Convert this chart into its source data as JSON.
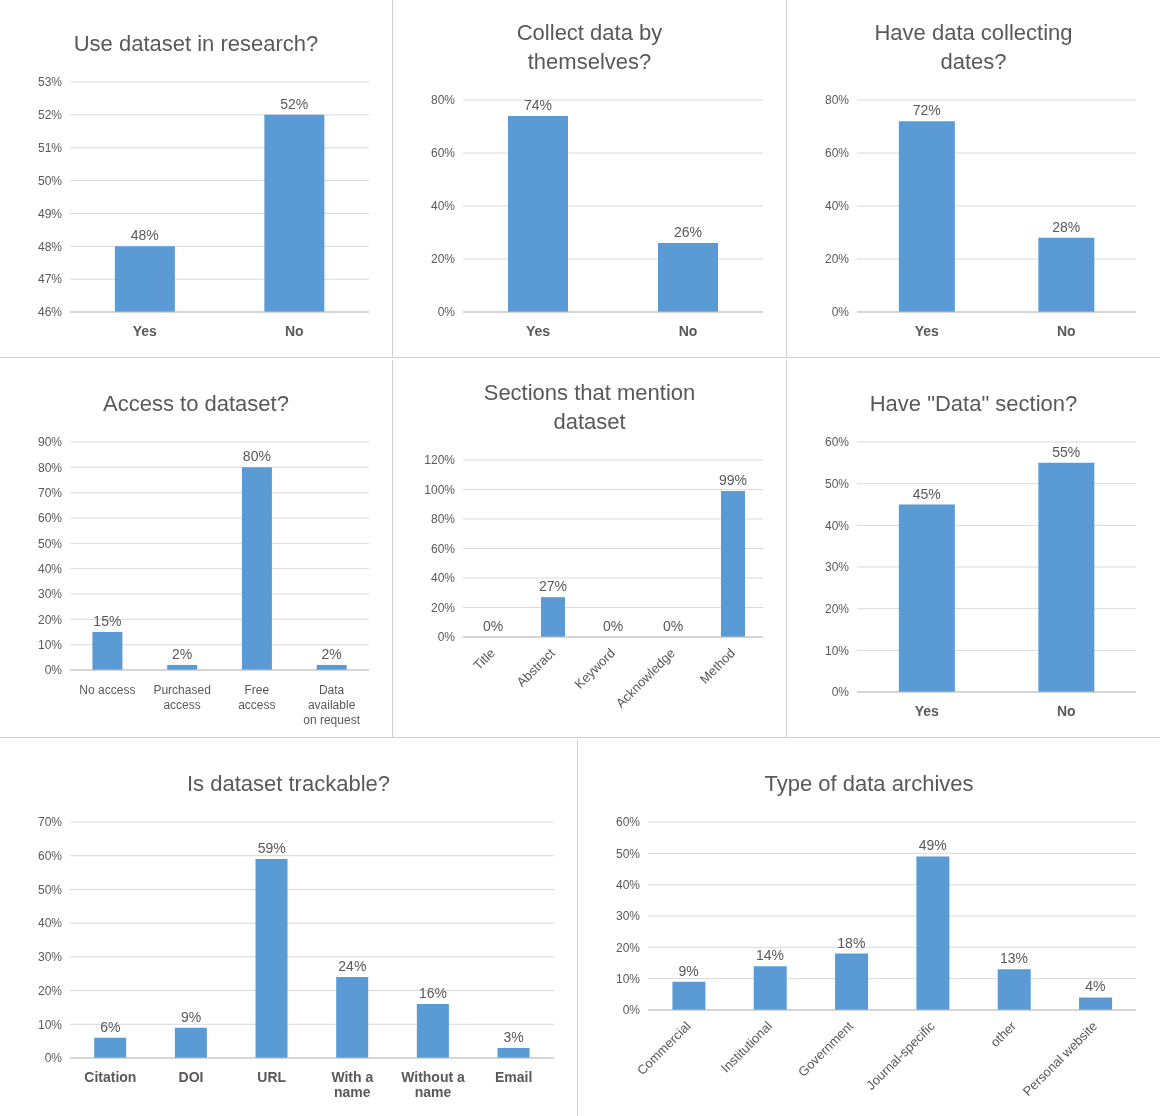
{
  "chart_data": [
    {
      "type": "bar",
      "title": "Use dataset in research?",
      "categories": [
        "Yes",
        "No"
      ],
      "values": [
        48,
        52
      ],
      "value_labels": [
        "48%",
        "52%"
      ],
      "color": "#5b9bd5",
      "ylim": [
        46,
        53
      ],
      "yticks": [
        {
          "value": 46,
          "label": "46%"
        },
        {
          "value": 47,
          "label": "47%"
        },
        {
          "value": 48,
          "label": "48%"
        },
        {
          "value": 49,
          "label": "49%"
        },
        {
          "value": 50,
          "label": "50%"
        },
        {
          "value": 51,
          "label": "51%"
        },
        {
          "value": 52,
          "label": "52%"
        },
        {
          "value": 53,
          "label": "53%"
        }
      ],
      "grid": "y"
    },
    {
      "type": "bar",
      "title": "Collect data by themselves?",
      "categories": [
        "Yes",
        "No"
      ],
      "values": [
        74,
        26
      ],
      "value_labels": [
        "74%",
        "26%"
      ],
      "color": "#5b9bd5",
      "ylim": [
        0,
        80
      ],
      "yticks": [
        {
          "value": 0,
          "label": "0%"
        },
        {
          "value": 20,
          "label": "20%"
        },
        {
          "value": 40,
          "label": "40%"
        },
        {
          "value": 60,
          "label": "60%"
        },
        {
          "value": 80,
          "label": "80%"
        }
      ],
      "grid": "y"
    },
    {
      "type": "bar",
      "title": "Have data collecting dates?",
      "categories": [
        "Yes",
        "No"
      ],
      "values": [
        72,
        28
      ],
      "value_labels": [
        "72%",
        "28%"
      ],
      "color": "#5b9bd5",
      "ylim": [
        0,
        80
      ],
      "yticks": [
        {
          "value": 0,
          "label": "0%"
        },
        {
          "value": 20,
          "label": "20%"
        },
        {
          "value": 40,
          "label": "40%"
        },
        {
          "value": 60,
          "label": "60%"
        },
        {
          "value": 80,
          "label": "80%"
        }
      ],
      "grid": "y"
    },
    {
      "type": "bar",
      "title": "Access to dataset?",
      "categories": [
        "No access",
        "Purchased access",
        "Free access",
        "Data available on request"
      ],
      "values": [
        15,
        2,
        80,
        2
      ],
      "value_labels": [
        "15%",
        "2%",
        "80%",
        "2%"
      ],
      "color": "#5b9bd5",
      "ylim": [
        0,
        90
      ],
      "yticks": [
        {
          "value": 0,
          "label": "0%"
        },
        {
          "value": 10,
          "label": "10%"
        },
        {
          "value": 20,
          "label": "20%"
        },
        {
          "value": 30,
          "label": "30%"
        },
        {
          "value": 40,
          "label": "40%"
        },
        {
          "value": 50,
          "label": "50%"
        },
        {
          "value": 60,
          "label": "60%"
        },
        {
          "value": 70,
          "label": "70%"
        },
        {
          "value": 80,
          "label": "80%"
        },
        {
          "value": 90,
          "label": "90%"
        }
      ],
      "grid": "y"
    },
    {
      "type": "bar",
      "title": "Sections that mention dataset",
      "categories": [
        "Title",
        "Abstract",
        "Keyword",
        "Acknowledge",
        "Method"
      ],
      "values": [
        0,
        27,
        0,
        0,
        99
      ],
      "value_labels": [
        "0%",
        "27%",
        "0%",
        "0%",
        "99%"
      ],
      "color": "#5b9bd5",
      "ylim": [
        0,
        120
      ],
      "yticks": [
        {
          "value": 0,
          "label": "0%"
        },
        {
          "value": 20,
          "label": "20%"
        },
        {
          "value": 40,
          "label": "40%"
        },
        {
          "value": 60,
          "label": "60%"
        },
        {
          "value": 80,
          "label": "80%"
        },
        {
          "value": 100,
          "label": "100%"
        },
        {
          "value": 120,
          "label": "120%"
        }
      ],
      "grid": "y"
    },
    {
      "type": "bar",
      "title": "Have \"Data\" section?",
      "categories": [
        "Yes",
        "No"
      ],
      "values": [
        45,
        55
      ],
      "value_labels": [
        "45%",
        "55%"
      ],
      "color": "#5b9bd5",
      "ylim": [
        0,
        60
      ],
      "yticks": [
        {
          "value": 0,
          "label": "0%"
        },
        {
          "value": 10,
          "label": "10%"
        },
        {
          "value": 20,
          "label": "20%"
        },
        {
          "value": 30,
          "label": "30%"
        },
        {
          "value": 40,
          "label": "40%"
        },
        {
          "value": 50,
          "label": "50%"
        },
        {
          "value": 60,
          "label": "60%"
        }
      ],
      "grid": "y"
    },
    {
      "type": "bar",
      "title": "Is dataset trackable?",
      "categories": [
        "Citation",
        "DOI",
        "URL",
        "With a name",
        "Without a name",
        "Email"
      ],
      "values": [
        6,
        9,
        59,
        24,
        16,
        3
      ],
      "value_labels": [
        "6%",
        "9%",
        "59%",
        "24%",
        "16%",
        "3%"
      ],
      "color": "#5b9bd5",
      "ylim": [
        0,
        70
      ],
      "yticks": [
        {
          "value": 0,
          "label": "0%"
        },
        {
          "value": 10,
          "label": "10%"
        },
        {
          "value": 20,
          "label": "20%"
        },
        {
          "value": 30,
          "label": "30%"
        },
        {
          "value": 40,
          "label": "40%"
        },
        {
          "value": 50,
          "label": "50%"
        },
        {
          "value": 60,
          "label": "60%"
        },
        {
          "value": 70,
          "label": "70%"
        }
      ],
      "grid": "y"
    },
    {
      "type": "bar",
      "title": "Type of data archives",
      "categories": [
        "Commercial",
        "Institutional",
        "Government",
        "Journal-specific",
        "other",
        "Personal website"
      ],
      "values": [
        9,
        14,
        18,
        49,
        13,
        4
      ],
      "value_labels": [
        "9%",
        "14%",
        "18%",
        "49%",
        "13%",
        "4%"
      ],
      "color": "#5b9bd5",
      "ylim": [
        0,
        60
      ],
      "yticks": [
        {
          "value": 0,
          "label": "0%"
        },
        {
          "value": 10,
          "label": "10%"
        },
        {
          "value": 20,
          "label": "20%"
        },
        {
          "value": 30,
          "label": "30%"
        },
        {
          "value": 40,
          "label": "40%"
        },
        {
          "value": 50,
          "label": "50%"
        },
        {
          "value": 60,
          "label": "60%"
        }
      ],
      "grid": "y"
    }
  ]
}
